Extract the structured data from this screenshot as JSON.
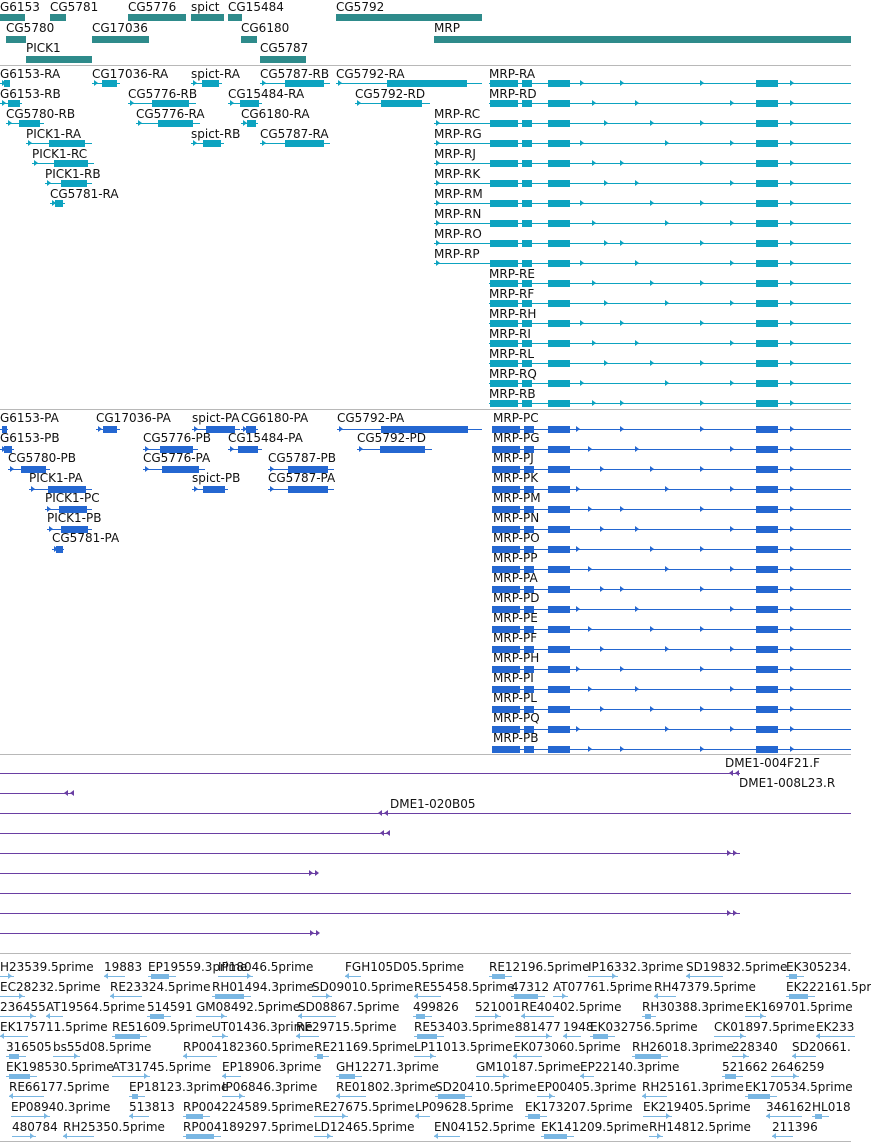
{
  "colors": {
    "gene": "#2e8b8b",
    "transcript": "#0da3c0",
    "protein": "#2467d1",
    "clone": "#6a3fa3",
    "est": "#7ab7e3",
    "separator": "#b8b8b8"
  },
  "tracks": {
    "genes": {
      "items": [
        {
          "label": "G6153"
        },
        {
          "label": "CG5781"
        },
        {
          "label": "CG5776"
        },
        {
          "label": "spict"
        },
        {
          "label": "CG15484"
        },
        {
          "label": "CG5792"
        },
        {
          "label": "CG5780"
        },
        {
          "label": "CG17036"
        },
        {
          "label": "CG6180"
        },
        {
          "label": "MRP"
        },
        {
          "label": "PICK1"
        },
        {
          "label": "CG5787"
        }
      ]
    },
    "transcripts": {
      "items": [
        {
          "label": "G6153-RA"
        },
        {
          "label": "CG17036-RA"
        },
        {
          "label": "spict-RA"
        },
        {
          "label": "CG5787-RB"
        },
        {
          "label": "CG5792-RA"
        },
        {
          "label": "MRP-RA"
        },
        {
          "label": "G6153-RB"
        },
        {
          "label": "CG5776-RB"
        },
        {
          "label": "CG15484-RA"
        },
        {
          "label": "CG5792-RD"
        },
        {
          "label": "MRP-RD"
        },
        {
          "label": "CG5780-RB"
        },
        {
          "label": "CG5776-RA"
        },
        {
          "label": "CG6180-RA"
        },
        {
          "label": "MRP-RC"
        },
        {
          "label": "PICK1-RA"
        },
        {
          "label": "spict-RB"
        },
        {
          "label": "CG5787-RA"
        },
        {
          "label": "MRP-RG"
        },
        {
          "label": "PICK1-RC"
        },
        {
          "label": "MRP-RJ"
        },
        {
          "label": "PICK1-RB"
        },
        {
          "label": "MRP-RK"
        },
        {
          "label": "CG5781-RA"
        },
        {
          "label": "MRP-RM"
        },
        {
          "label": "MRP-RN"
        },
        {
          "label": "MRP-RO"
        },
        {
          "label": "MRP-RP"
        },
        {
          "label": "MRP-RE"
        },
        {
          "label": "MRP-RF"
        },
        {
          "label": "MRP-RH"
        },
        {
          "label": "MRP-RI"
        },
        {
          "label": "MRP-RL"
        },
        {
          "label": "MRP-RQ"
        },
        {
          "label": "MRP-RB"
        }
      ]
    },
    "proteins": {
      "items": [
        {
          "label": "G6153-PA"
        },
        {
          "label": "CG17036-PA"
        },
        {
          "label": "spict-PA"
        },
        {
          "label": "CG6180-PA"
        },
        {
          "label": "CG5792-PA"
        },
        {
          "label": "MRP-PC"
        },
        {
          "label": "G6153-PB"
        },
        {
          "label": "CG5776-PB"
        },
        {
          "label": "CG15484-PA"
        },
        {
          "label": "CG5792-PD"
        },
        {
          "label": "MRP-PG"
        },
        {
          "label": "CG5780-PB"
        },
        {
          "label": "CG5776-PA"
        },
        {
          "label": "CG5787-PB"
        },
        {
          "label": "MRP-PJ"
        },
        {
          "label": "PICK1-PA"
        },
        {
          "label": "spict-PB"
        },
        {
          "label": "CG5787-PA"
        },
        {
          "label": "MRP-PK"
        },
        {
          "label": "PICK1-PC"
        },
        {
          "label": "MRP-PM"
        },
        {
          "label": "PICK1-PB"
        },
        {
          "label": "MRP-PN"
        },
        {
          "label": "CG5781-PA"
        },
        {
          "label": "MRP-PO"
        },
        {
          "label": "MRP-PP"
        },
        {
          "label": "MRP-PA"
        },
        {
          "label": "MRP-PD"
        },
        {
          "label": "MRP-PE"
        },
        {
          "label": "MRP-PF"
        },
        {
          "label": "MRP-PH"
        },
        {
          "label": "MRP-PI"
        },
        {
          "label": "MRP-PL"
        },
        {
          "label": "MRP-PQ"
        },
        {
          "label": "MRP-PB"
        }
      ]
    },
    "clones": {
      "items": [
        {
          "label": "DME1-004F21.F"
        },
        {
          "label": "DME1-008L23.R"
        },
        {
          "label": "DME1-020B05"
        }
      ]
    },
    "ests": {
      "items": [
        {
          "label": "H23539.5prime"
        },
        {
          "label": "19883"
        },
        {
          "label": "EP19559.3prime"
        },
        {
          "label": "IP18046.5prime"
        },
        {
          "label": "FGH105D05.5prime"
        },
        {
          "label": "RE12196.5prime"
        },
        {
          "label": "IP16332.3prime"
        },
        {
          "label": "SD19832.5prime"
        },
        {
          "label": "EK305234."
        },
        {
          "label": "EC28232.5prime"
        },
        {
          "label": "RE23324.5prime"
        },
        {
          "label": "RH01494.3prime"
        },
        {
          "label": "SD09010.5prime"
        },
        {
          "label": "RE55458.5prime"
        },
        {
          "label": "47312"
        },
        {
          "label": "AT07761.5prime"
        },
        {
          "label": "RH47379.5prime"
        },
        {
          "label": "EK222161.5pr"
        },
        {
          "label": "236455"
        },
        {
          "label": "AT19564.5prime"
        },
        {
          "label": "514591"
        },
        {
          "label": "GM08492.5prime"
        },
        {
          "label": "SD08867.5prime"
        },
        {
          "label": "499826"
        },
        {
          "label": "521001"
        },
        {
          "label": "RE40402.5prime"
        },
        {
          "label": "RH30388.3prime"
        },
        {
          "label": "EK169701.5prime"
        },
        {
          "label": "EK175711.5prime"
        },
        {
          "label": "RE51609.5prime"
        },
        {
          "label": "UT01436.3prime"
        },
        {
          "label": "RE29715.5prime"
        },
        {
          "label": "RE53403.5prime"
        },
        {
          "label": "881477"
        },
        {
          "label": "1948"
        },
        {
          "label": "EK032756.5prime"
        },
        {
          "label": "CK01897.5prime"
        },
        {
          "label": "EK233"
        },
        {
          "label": "316505"
        },
        {
          "label": "bs55d08.5prime"
        },
        {
          "label": "RP004182360.5prime"
        },
        {
          "label": "RE21169.5prime"
        },
        {
          "label": "LP11013.5prime"
        },
        {
          "label": "EK073060.5prime"
        },
        {
          "label": "RH26018.3prime"
        },
        {
          "label": "228340"
        },
        {
          "label": "SD20661."
        },
        {
          "label": "EK198530.5prime"
        },
        {
          "label": "AT31745.5prime"
        },
        {
          "label": "EP18906.3prime"
        },
        {
          "label": "GH12271.3prime"
        },
        {
          "label": "GM10187.5prime"
        },
        {
          "label": "EP22140.3prime"
        },
        {
          "label": "521662"
        },
        {
          "label": "2646259"
        },
        {
          "label": "RE66177.5prime"
        },
        {
          "label": "EP18123.3prime"
        },
        {
          "label": "IP06846.3prime"
        },
        {
          "label": "RE01802.3prime"
        },
        {
          "label": "SD20410.5prime"
        },
        {
          "label": "EP00405.3prime"
        },
        {
          "label": "RH25161.3prime"
        },
        {
          "label": "EK170534.5prime"
        },
        {
          "label": "EP08940.3prime"
        },
        {
          "label": "513813"
        },
        {
          "label": "RP004224589.5prime"
        },
        {
          "label": "RE27675.5prime"
        },
        {
          "label": "LP09628.5prime"
        },
        {
          "label": "EK173207.5prime"
        },
        {
          "label": "EK219405.5prime"
        },
        {
          "label": "346162"
        },
        {
          "label": "HL018"
        },
        {
          "label": "480784"
        },
        {
          "label": "RH25350.5prime"
        },
        {
          "label": "RP004189297.5prime"
        },
        {
          "label": "LD12465.5prime"
        },
        {
          "label": "EN04152.5prime"
        },
        {
          "label": "EK141209.5prime"
        },
        {
          "label": "RH14812.5prime"
        },
        {
          "label": "211396"
        }
      ]
    }
  }
}
